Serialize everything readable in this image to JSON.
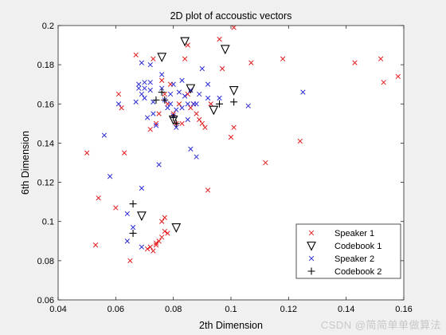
{
  "chart_data": {
    "type": "scatter",
    "title": "2D plot of accoustic vectors",
    "xlabel": "2th Dimension",
    "ylabel": "6th Dimension",
    "xlim": [
      0.04,
      0.16
    ],
    "ylim": [
      0.06,
      0.2
    ],
    "xticks": [
      "0.04",
      "0.06",
      "0.08",
      "0.1",
      "0.12",
      "0.14",
      "0.16"
    ],
    "yticks": [
      "0.06",
      "0.08",
      "0.1",
      "0.12",
      "0.14",
      "0.16",
      "0.18",
      "0.2"
    ],
    "legend_position": "bottom-right",
    "series": [
      {
        "name": "Speaker 1",
        "marker": "x",
        "color": "#e41a1c",
        "points": [
          [
            0.05,
            0.135
          ],
          [
            0.054,
            0.112
          ],
          [
            0.053,
            0.088
          ],
          [
            0.06,
            0.107
          ],
          [
            0.063,
            0.135
          ],
          [
            0.061,
            0.165
          ],
          [
            0.062,
            0.158
          ],
          [
            0.065,
            0.08
          ],
          [
            0.067,
            0.185
          ],
          [
            0.073,
            0.183
          ],
          [
            0.072,
            0.147
          ],
          [
            0.074,
            0.15
          ],
          [
            0.075,
            0.155
          ],
          [
            0.076,
            0.172
          ],
          [
            0.077,
            0.165
          ],
          [
            0.078,
            0.16
          ],
          [
            0.079,
            0.17
          ],
          [
            0.08,
            0.155
          ],
          [
            0.081,
            0.15
          ],
          [
            0.082,
            0.16
          ],
          [
            0.083,
            0.15
          ],
          [
            0.084,
            0.183
          ],
          [
            0.085,
            0.19
          ],
          [
            0.085,
            0.165
          ],
          [
            0.086,
            0.158
          ],
          [
            0.087,
            0.16
          ],
          [
            0.088,
            0.155
          ],
          [
            0.089,
            0.152
          ],
          [
            0.09,
            0.15
          ],
          [
            0.091,
            0.148
          ],
          [
            0.092,
            0.116
          ],
          [
            0.093,
            0.16
          ],
          [
            0.096,
            0.193
          ],
          [
            0.097,
            0.178
          ],
          [
            0.1,
            0.143
          ],
          [
            0.101,
            0.199
          ],
          [
            0.101,
            0.148
          ],
          [
            0.107,
            0.181
          ],
          [
            0.112,
            0.13
          ],
          [
            0.118,
            0.183
          ],
          [
            0.124,
            0.141
          ],
          [
            0.143,
            0.181
          ],
          [
            0.152,
            0.183
          ],
          [
            0.153,
            0.171
          ],
          [
            0.158,
            0.174
          ],
          [
            0.072,
            0.087
          ],
          [
            0.073,
            0.085
          ],
          [
            0.074,
            0.088
          ],
          [
            0.075,
            0.09
          ],
          [
            0.076,
            0.092
          ],
          [
            0.077,
            0.095
          ],
          [
            0.078,
            0.094
          ],
          [
            0.076,
            0.1
          ],
          [
            0.077,
            0.102
          ],
          [
            0.074,
            0.089
          ],
          [
            0.071,
            0.086
          ]
        ]
      },
      {
        "name": "Codebook 1",
        "marker": "triangle-down",
        "color": "#000000",
        "points": [
          [
            0.084,
            0.192
          ],
          [
            0.098,
            0.188
          ],
          [
            0.076,
            0.184
          ],
          [
            0.086,
            0.168
          ],
          [
            0.101,
            0.167
          ],
          [
            0.094,
            0.157
          ],
          [
            0.08,
            0.152
          ],
          [
            0.069,
            0.103
          ],
          [
            0.081,
            0.097
          ]
        ]
      },
      {
        "name": "Speaker 2",
        "marker": "x",
        "color": "#2b2bd6",
        "points": [
          [
            0.056,
            0.144
          ],
          [
            0.058,
            0.123
          ],
          [
            0.061,
            0.16
          ],
          [
            0.064,
            0.104
          ],
          [
            0.064,
            0.09
          ],
          [
            0.066,
            0.097
          ],
          [
            0.067,
            0.161
          ],
          [
            0.068,
            0.17
          ],
          [
            0.068,
            0.168
          ],
          [
            0.069,
            0.165
          ],
          [
            0.069,
            0.117
          ],
          [
            0.069,
            0.087
          ],
          [
            0.069,
            0.181
          ],
          [
            0.07,
            0.171
          ],
          [
            0.07,
            0.168
          ],
          [
            0.07,
            0.163
          ],
          [
            0.071,
            0.153
          ],
          [
            0.072,
            0.171
          ],
          [
            0.072,
            0.167
          ],
          [
            0.073,
            0.161
          ],
          [
            0.073,
            0.155
          ],
          [
            0.074,
            0.149
          ],
          [
            0.075,
            0.129
          ],
          [
            0.076,
            0.175
          ],
          [
            0.076,
            0.168
          ],
          [
            0.077,
            0.162
          ],
          [
            0.078,
            0.158
          ],
          [
            0.079,
            0.165
          ],
          [
            0.079,
            0.16
          ],
          [
            0.08,
            0.17
          ],
          [
            0.08,
            0.154
          ],
          [
            0.081,
            0.148
          ],
          [
            0.081,
            0.157
          ],
          [
            0.082,
            0.166
          ],
          [
            0.083,
            0.172
          ],
          [
            0.083,
            0.158
          ],
          [
            0.084,
            0.164
          ],
          [
            0.085,
            0.16
          ],
          [
            0.085,
            0.152
          ],
          [
            0.086,
            0.167
          ],
          [
            0.086,
            0.137
          ],
          [
            0.087,
            0.16
          ],
          [
            0.088,
            0.16
          ],
          [
            0.088,
            0.133
          ],
          [
            0.089,
            0.165
          ],
          [
            0.09,
            0.178
          ],
          [
            0.092,
            0.17
          ],
          [
            0.092,
            0.163
          ],
          [
            0.096,
            0.163
          ],
          [
            0.106,
            0.159
          ],
          [
            0.125,
            0.166
          ],
          [
            0.072,
            0.18
          ]
        ]
      },
      {
        "name": "Codebook 2",
        "marker": "plus",
        "color": "#000000",
        "points": [
          [
            0.074,
            0.162
          ],
          [
            0.076,
            0.166
          ],
          [
            0.077,
            0.162
          ],
          [
            0.08,
            0.153
          ],
          [
            0.081,
            0.15
          ],
          [
            0.096,
            0.16
          ],
          [
            0.101,
            0.161
          ],
          [
            0.066,
            0.109
          ],
          [
            0.066,
            0.094
          ]
        ]
      }
    ]
  },
  "watermark": "CSDN @简简单单做算法"
}
